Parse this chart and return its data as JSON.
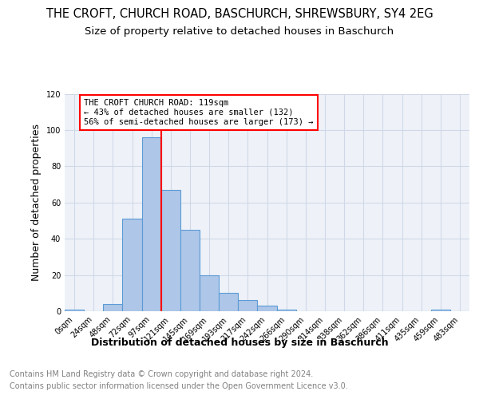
{
  "title": "THE CROFT, CHURCH ROAD, BASCHURCH, SHREWSBURY, SY4 2EG",
  "subtitle": "Size of property relative to detached houses in Baschurch",
  "xlabel_bottom": "Distribution of detached houses by size in Baschurch",
  "ylabel": "Number of detached properties",
  "bar_labels": [
    "0sqm",
    "24sqm",
    "48sqm",
    "72sqm",
    "97sqm",
    "121sqm",
    "145sqm",
    "169sqm",
    "193sqm",
    "217sqm",
    "242sqm",
    "266sqm",
    "290sqm",
    "314sqm",
    "338sqm",
    "362sqm",
    "386sqm",
    "411sqm",
    "435sqm",
    "459sqm",
    "483sqm"
  ],
  "bar_values": [
    1,
    0,
    4,
    51,
    96,
    67,
    45,
    20,
    10,
    6,
    3,
    1,
    0,
    0,
    0,
    0,
    0,
    0,
    0,
    1,
    0
  ],
  "bar_color": "#aec6e8",
  "bar_edge_color": "#5b9bd5",
  "grid_color": "#d0d8e8",
  "background_color": "#eef2f8",
  "annotation_text": "THE CROFT CHURCH ROAD: 119sqm\n← 43% of detached houses are smaller (132)\n56% of semi-detached houses are larger (173) →",
  "red_line_x": 4.5,
  "ylim": [
    0,
    120
  ],
  "yticks": [
    0,
    20,
    40,
    60,
    80,
    100,
    120
  ],
  "footer_line1": "Contains HM Land Registry data © Crown copyright and database right 2024.",
  "footer_line2": "Contains public sector information licensed under the Open Government Licence v3.0.",
  "title_fontsize": 10.5,
  "subtitle_fontsize": 9.5,
  "ylabel_fontsize": 9,
  "footer_fontsize": 7,
  "annot_fontsize": 7.5,
  "tick_fontsize": 7,
  "xlabel_bottom_fontsize": 9
}
